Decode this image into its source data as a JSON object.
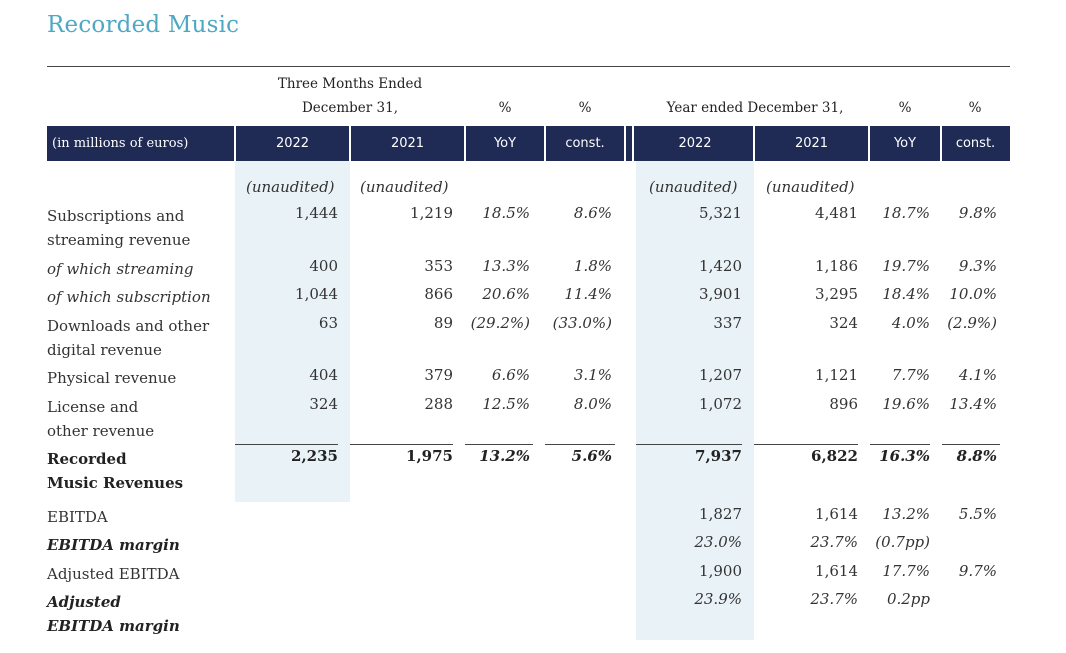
{
  "title": "Recorded Music",
  "header": {
    "three_months_line1": "Three Months Ended",
    "three_months_line2": "December 31,",
    "year_ended": "Year ended December 31,",
    "pct": "%",
    "unit_label": "(in millions of euros)",
    "columns": [
      "2022",
      "2021",
      "YoY",
      "const.",
      "2022",
      "2021",
      "YoY",
      "const."
    ],
    "unaudited": "(unaudited)"
  },
  "rows": [
    {
      "label": "Subscriptions and streaming revenue",
      "values": [
        "1,444",
        "1,219",
        "18.5%",
        "8.6%",
        "5,321",
        "4,481",
        "18.7%",
        "9.8%"
      ]
    },
    {
      "label": "of which streaming",
      "values": [
        "400",
        "353",
        "13.3%",
        "1.8%",
        "1,420",
        "1,186",
        "19.7%",
        "9.3%"
      ]
    },
    {
      "label": "of which subscription",
      "values": [
        "1,044",
        "866",
        "20.6%",
        "11.4%",
        "3,901",
        "3,295",
        "18.4%",
        "10.0%"
      ]
    },
    {
      "label": "Downloads and other digital revenue",
      "values": [
        "63",
        "89",
        "(29.2%)",
        "(33.0%)",
        "337",
        "324",
        "4.0%",
        "(2.9%)"
      ]
    },
    {
      "label": "Physical revenue",
      "values": [
        "404",
        "379",
        "6.6%",
        "3.1%",
        "1,207",
        "1,121",
        "7.7%",
        "4.1%"
      ]
    },
    {
      "label": "License and other revenue",
      "values": [
        "324",
        "288",
        "12.5%",
        "8.0%",
        "1,072",
        "896",
        "19.6%",
        "13.4%"
      ]
    },
    {
      "label": "Recorded Music Revenues",
      "values": [
        "2,235",
        "1,975",
        "13.2%",
        "5.6%",
        "7,937",
        "6,822",
        "16.3%",
        "8.8%"
      ]
    },
    {
      "label": "EBITDA",
      "values": [
        "",
        "",
        "",
        "",
        "1,827",
        "1,614",
        "13.2%",
        "5.5%"
      ]
    },
    {
      "label": "EBITDA margin",
      "values": [
        "",
        "",
        "",
        "",
        "23.0%",
        "23.7%",
        "(0.7pp)",
        ""
      ]
    },
    {
      "label": "Adjusted EBITDA",
      "values": [
        "",
        "",
        "",
        "",
        "1,900",
        "1,614",
        "17.7%",
        "9.7%"
      ]
    },
    {
      "label": "Adjusted EBITDA margin",
      "values": [
        "",
        "",
        "",
        "",
        "23.9%",
        "23.7%",
        "0.2pp",
        ""
      ]
    }
  ],
  "label_lines": {
    "subs_1": "Subscriptions and",
    "subs_2": "streaming revenue",
    "dl_1": "Downloads and other",
    "dl_2": "digital revenue",
    "lic_1": "License and",
    "lic_2": "other revenue",
    "rm_1": "Recorded",
    "rm_2": "Music Revenues",
    "adj_1": "Adjusted",
    "adj_2": "EBITDA margin"
  },
  "colors": {
    "accent": "#4da8c4",
    "band": "#1f2a55",
    "shade": "#e9f2f7"
  }
}
